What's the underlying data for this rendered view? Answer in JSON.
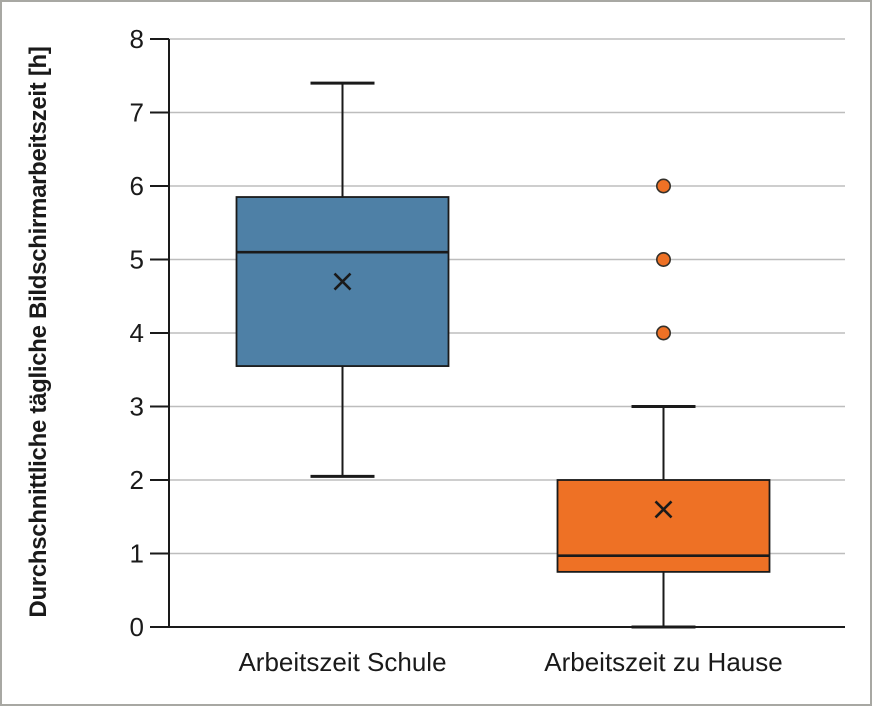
{
  "chart_data": {
    "type": "boxplot",
    "title": "",
    "xlabel": "",
    "ylabel": "Durchschnittliche tägliche Bildschirmarbeitszeit [h]",
    "ylim": [
      0,
      8
    ],
    "yticks": [
      0,
      1,
      2,
      3,
      4,
      5,
      6,
      7,
      8
    ],
    "grid": true,
    "legend": "none",
    "categories": [
      "Arbeitszeit Schule",
      "Arbeitszeit zu Hause"
    ],
    "series": [
      {
        "name": "Arbeitszeit Schule",
        "color": "#4e80a6",
        "whisker_low": 2.05,
        "q1": 3.55,
        "median": 5.1,
        "q3": 5.85,
        "whisker_high": 7.4,
        "mean": 4.7,
        "outliers": []
      },
      {
        "name": "Arbeitszeit zu Hause",
        "color": "#ee7125",
        "whisker_low": 0.0,
        "q1": 0.75,
        "median": 0.97,
        "q3": 2.0,
        "whisker_high": 3.0,
        "mean": 1.6,
        "outliers": [
          4.0,
          5.0,
          6.0
        ]
      }
    ],
    "colors": {
      "box_blue": "#4e80a6",
      "box_orange": "#ee7125",
      "grid_line": "#bdbdbd",
      "axis_line": "#1a1a1a",
      "text": "#1a1a1a",
      "outlier_edge": "#33302b",
      "frame_border": "#a8a8a3"
    }
  }
}
